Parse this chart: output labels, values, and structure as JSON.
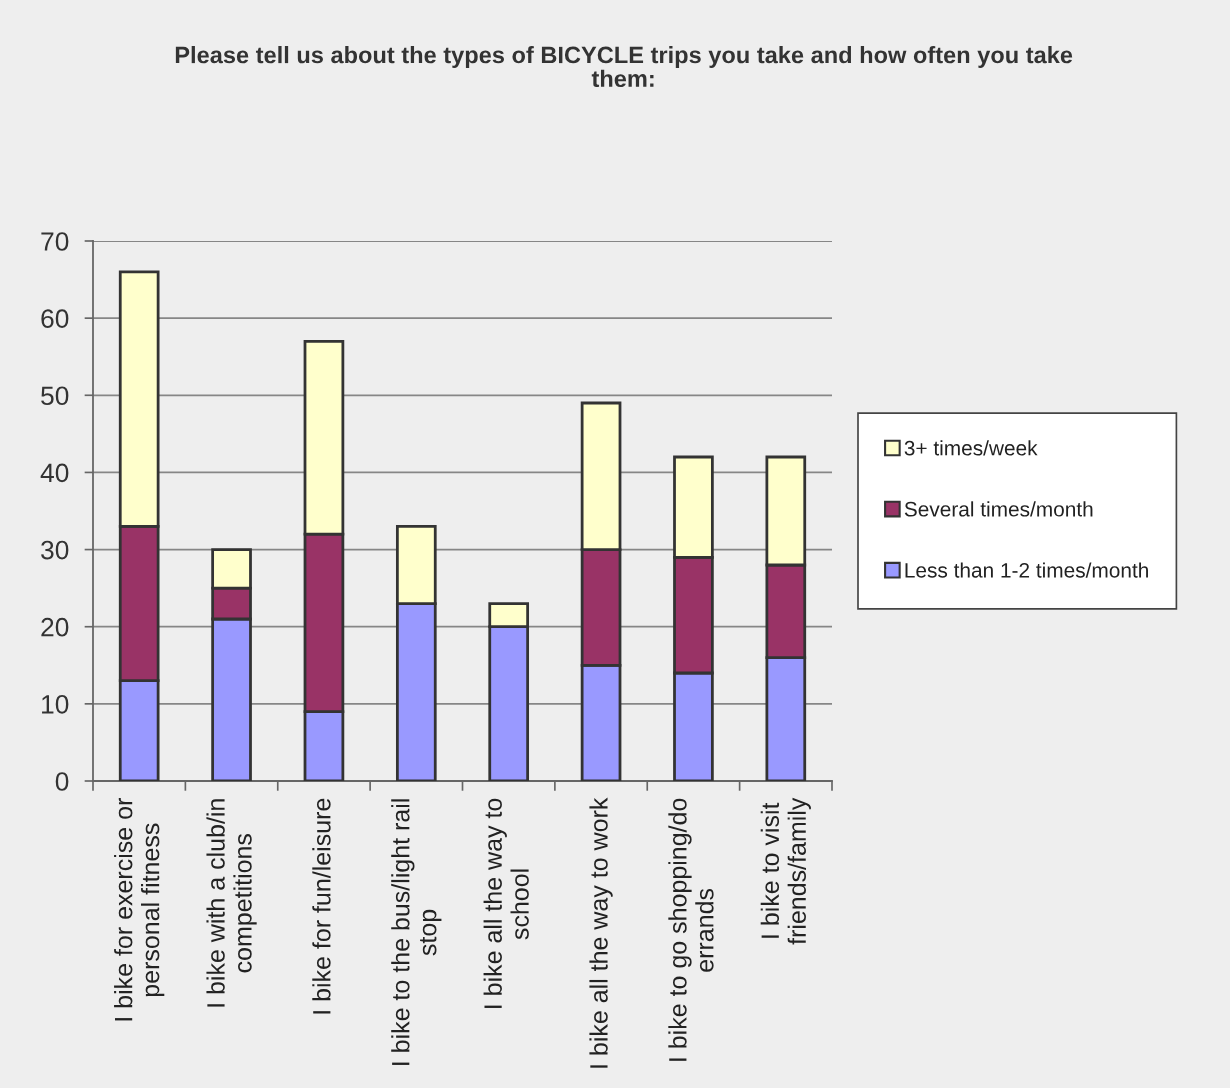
{
  "chart_data": {
    "type": "bar",
    "title": "Please tell us about the types of BICYCLE trips you take and how often you take\nthem:",
    "categories": [
      "I bike for exercise or\npersonal fitness",
      "I bike with a club/in\ncompetitions",
      "I bike for fun/leisure",
      "I bike to the bus/light rail\nstop",
      "I bike all the way to\nschool",
      "I bike all the way to work",
      "I bike to go shopping/do\nerrands",
      "I bike to visit\nfriends/family"
    ],
    "series": [
      {
        "name": "Less than 1-2 times/month",
        "color": "#9999ff",
        "values": [
          13,
          21,
          9,
          23,
          20,
          15,
          14,
          16
        ]
      },
      {
        "name": "Several times/month",
        "color": "#993366",
        "values": [
          20,
          4,
          23,
          0,
          0,
          15,
          15,
          12
        ]
      },
      {
        "name": "3+ times/week",
        "color": "#ffffcc",
        "values": [
          33,
          5,
          25,
          10,
          3,
          19,
          13,
          14
        ]
      }
    ],
    "stacked": true,
    "ylim": [
      0,
      70
    ],
    "yticks": [
      0,
      10,
      20,
      30,
      40,
      50,
      60,
      70
    ],
    "grid": "y",
    "legend": "right"
  }
}
